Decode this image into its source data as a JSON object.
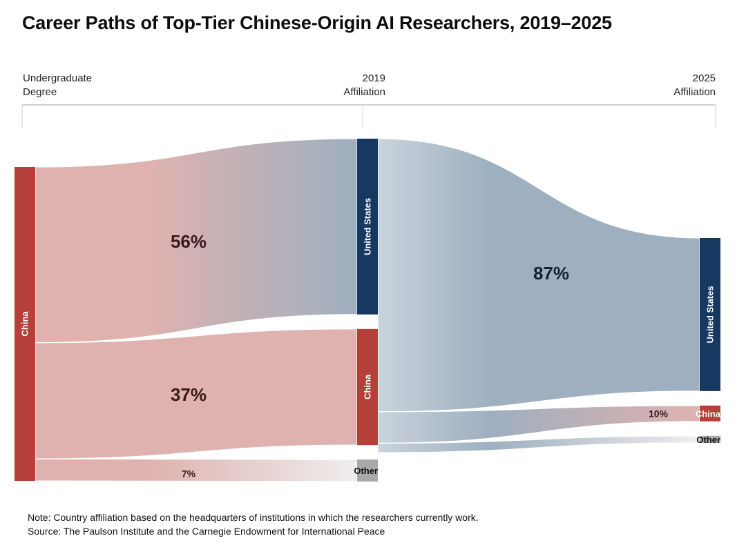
{
  "title": "Career Paths of Top-Tier Chinese-Origin AI Researchers, 2019–2025",
  "columns": [
    {
      "line1": "Undergraduate",
      "line2": "Degree"
    },
    {
      "line1": "2019",
      "line2": "Affiliation"
    },
    {
      "line1": "2025",
      "line2": "Affiliation"
    }
  ],
  "notes": {
    "note": "Note: Country affiliation based on the headquarters of institutions in which the researchers currently work.",
    "source": "Source: The Paulson Institute and the Carnegie Endowment for International Peace"
  },
  "colors": {
    "china": "#b5403a",
    "united_states": "#173861",
    "other": "#a8a9ab",
    "china_flow": "#dfb2af",
    "us_flow": "#9eafbf",
    "other_flow": "#eeeeee",
    "label_dark": "#3a1a1a"
  },
  "chart_data": {
    "type": "sankey",
    "title": "Career Paths of Top-Tier Chinese-Origin AI Researchers, 2019–2025",
    "stages": [
      "Undergraduate Degree",
      "2019 Affiliation",
      "2025 Affiliation"
    ],
    "nodes": [
      {
        "id": "ug_china",
        "stage": 0,
        "label": "China",
        "value": 100,
        "color_key": "china"
      },
      {
        "id": "y19_us",
        "stage": 1,
        "label": "United States",
        "value": 56,
        "color_key": "united_states"
      },
      {
        "id": "y19_china",
        "stage": 1,
        "label": "China",
        "value": 37,
        "color_key": "china"
      },
      {
        "id": "y19_other",
        "stage": 1,
        "label": "Other",
        "value": 7,
        "color_key": "other"
      },
      {
        "id": "y25_us",
        "stage": 2,
        "label": "United States",
        "value": 87,
        "color_key": "united_states"
      },
      {
        "id": "y25_china",
        "stage": 2,
        "label": "China",
        "value": 10,
        "color_key": "china"
      },
      {
        "id": "y25_other",
        "stage": 2,
        "label": "Other",
        "value": 3,
        "color_key": "other"
      }
    ],
    "links": [
      {
        "source": "ug_china",
        "target": "y19_us",
        "value": 56,
        "label": "56%"
      },
      {
        "source": "ug_china",
        "target": "y19_china",
        "value": 37,
        "label": "37%"
      },
      {
        "source": "ug_china",
        "target": "y19_other",
        "value": 7,
        "label": "7%"
      },
      {
        "source": "y19_us",
        "target": "y25_us",
        "value": 87,
        "label": "87%"
      },
      {
        "source": "y19_us",
        "target": "y25_china",
        "value": 10,
        "label": "10%"
      },
      {
        "source": "y19_us",
        "target": "y25_other",
        "value": 3,
        "label": ""
      }
    ],
    "units": "percent of researchers"
  }
}
